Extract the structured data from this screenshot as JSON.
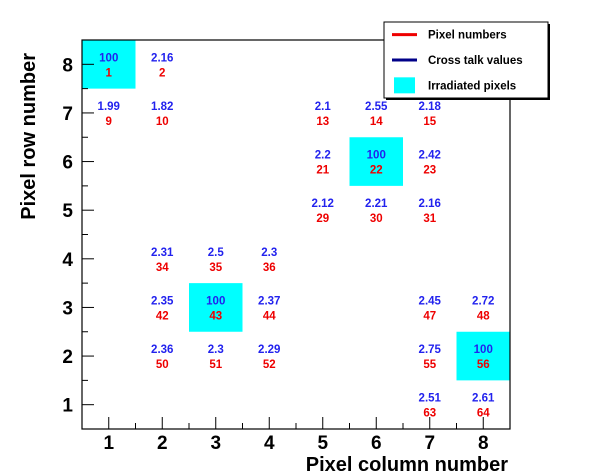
{
  "chart_data": {
    "type": "scatter",
    "title": "",
    "xlabel": "Pixel column number",
    "ylabel": "Pixel row number",
    "xlim": [
      0.5,
      8.5
    ],
    "ylim": [
      0.5,
      8.5
    ],
    "x_ticks": [
      "1",
      "2",
      "3",
      "4",
      "5",
      "6",
      "7",
      "8"
    ],
    "y_ticks": [
      "1",
      "2",
      "3",
      "4",
      "5",
      "6",
      "7",
      "8"
    ],
    "grid": false,
    "legend": {
      "placement": "top-right",
      "entries": [
        {
          "label": "Pixel numbers",
          "color": "#ee0000",
          "symbol": "line"
        },
        {
          "label": "Cross talk values",
          "color": "#000088",
          "symbol": "line"
        },
        {
          "label": "Irradiated pixels",
          "color": "#00ffff",
          "symbol": "box"
        }
      ]
    },
    "colors": {
      "pixel_number": "#ee0000",
      "cross_talk": "#2222ee",
      "irradiated": "#00ffff"
    },
    "irradiated_pixels": [
      {
        "col": 1,
        "row": 8
      },
      {
        "col": 6,
        "row": 6
      },
      {
        "col": 3,
        "row": 3
      },
      {
        "col": 8,
        "row": 2
      }
    ],
    "points": [
      {
        "col": 1,
        "row": 8,
        "pixel": "1",
        "value": "100"
      },
      {
        "col": 2,
        "row": 8,
        "pixel": "2",
        "value": "2.16"
      },
      {
        "col": 1,
        "row": 7,
        "pixel": "9",
        "value": "1.99"
      },
      {
        "col": 2,
        "row": 7,
        "pixel": "10",
        "value": "1.82"
      },
      {
        "col": 5,
        "row": 7,
        "pixel": "13",
        "value": "2.1"
      },
      {
        "col": 6,
        "row": 7,
        "pixel": "14",
        "value": "2.55"
      },
      {
        "col": 7,
        "row": 7,
        "pixel": "15",
        "value": "2.18"
      },
      {
        "col": 5,
        "row": 6,
        "pixel": "21",
        "value": "2.2"
      },
      {
        "col": 6,
        "row": 6,
        "pixel": "22",
        "value": "100"
      },
      {
        "col": 7,
        "row": 6,
        "pixel": "23",
        "value": "2.42"
      },
      {
        "col": 5,
        "row": 5,
        "pixel": "29",
        "value": "2.12"
      },
      {
        "col": 6,
        "row": 5,
        "pixel": "30",
        "value": "2.21"
      },
      {
        "col": 7,
        "row": 5,
        "pixel": "31",
        "value": "2.16"
      },
      {
        "col": 2,
        "row": 4,
        "pixel": "34",
        "value": "2.31"
      },
      {
        "col": 3,
        "row": 4,
        "pixel": "35",
        "value": "2.5"
      },
      {
        "col": 4,
        "row": 4,
        "pixel": "36",
        "value": "2.3"
      },
      {
        "col": 2,
        "row": 3,
        "pixel": "42",
        "value": "2.35"
      },
      {
        "col": 3,
        "row": 3,
        "pixel": "43",
        "value": "100"
      },
      {
        "col": 4,
        "row": 3,
        "pixel": "44",
        "value": "2.37"
      },
      {
        "col": 7,
        "row": 3,
        "pixel": "47",
        "value": "2.45"
      },
      {
        "col": 8,
        "row": 3,
        "pixel": "48",
        "value": "2.72"
      },
      {
        "col": 2,
        "row": 2,
        "pixel": "50",
        "value": "2.36"
      },
      {
        "col": 3,
        "row": 2,
        "pixel": "51",
        "value": "2.3"
      },
      {
        "col": 4,
        "row": 2,
        "pixel": "52",
        "value": "2.29"
      },
      {
        "col": 7,
        "row": 2,
        "pixel": "55",
        "value": "2.75"
      },
      {
        "col": 8,
        "row": 2,
        "pixel": "56",
        "value": "100"
      },
      {
        "col": 7,
        "row": 1,
        "pixel": "63",
        "value": "2.51"
      },
      {
        "col": 8,
        "row": 1,
        "pixel": "64",
        "value": "2.61"
      }
    ]
  }
}
